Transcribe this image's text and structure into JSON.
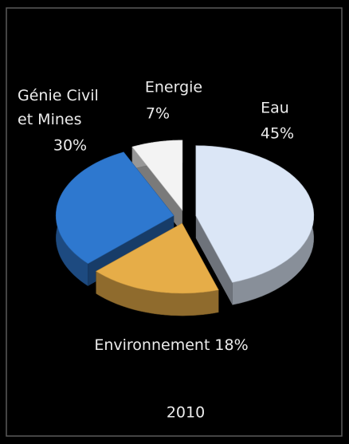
{
  "chart_data": {
    "type": "pie3d",
    "title": "2010",
    "categories": [
      "Eau",
      "Environnement",
      "Génie Civil et Mines",
      "Energie"
    ],
    "values": [
      45,
      18,
      30,
      7
    ],
    "value_labels": [
      "45%",
      "18%",
      "30%",
      "7%"
    ],
    "colors": [
      "#dbe6f6",
      "#e6ad48",
      "#2e78cf",
      "#f3f3f3"
    ]
  }
}
